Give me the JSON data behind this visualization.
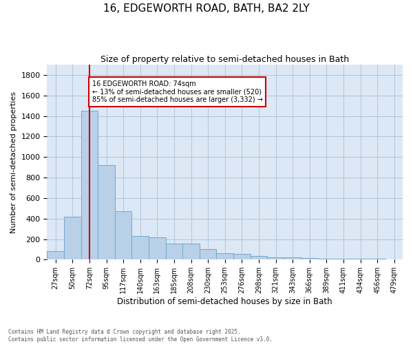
{
  "title": "16, EDGEWORTH ROAD, BATH, BA2 2LY",
  "subtitle": "Size of property relative to semi-detached houses in Bath",
  "xlabel": "Distribution of semi-detached houses by size in Bath",
  "ylabel": "Number of semi-detached properties",
  "property_label": "16 EDGEWORTH ROAD: 74sqm",
  "pct_smaller": 13,
  "pct_larger": 85,
  "count_smaller": 520,
  "count_larger": 3332,
  "bin_labels": [
    "27sqm",
    "50sqm",
    "72sqm",
    "95sqm",
    "117sqm",
    "140sqm",
    "163sqm",
    "185sqm",
    "208sqm",
    "230sqm",
    "253sqm",
    "276sqm",
    "298sqm",
    "321sqm",
    "343sqm",
    "366sqm",
    "389sqm",
    "411sqm",
    "434sqm",
    "456sqm",
    "479sqm"
  ],
  "bar_heights": [
    80,
    420,
    1450,
    920,
    470,
    230,
    220,
    160,
    155,
    100,
    60,
    55,
    35,
    25,
    20,
    15,
    10,
    8,
    10,
    8,
    5
  ],
  "bar_color": "#b8d0e8",
  "bar_edge_color": "#6fa8d0",
  "vline_color": "#cc0000",
  "vline_x_index": 2,
  "annotation_box_color": "#cc0000",
  "background_color": "#ffffff",
  "plot_bg_color": "#dce8f5",
  "grid_color": "#b0c4d8",
  "ylim": [
    0,
    1900
  ],
  "yticks": [
    0,
    200,
    400,
    600,
    800,
    1000,
    1200,
    1400,
    1600,
    1800
  ],
  "footer_line1": "Contains HM Land Registry data © Crown copyright and database right 2025.",
  "footer_line2": "Contains public sector information licensed under the Open Government Licence v3.0."
}
